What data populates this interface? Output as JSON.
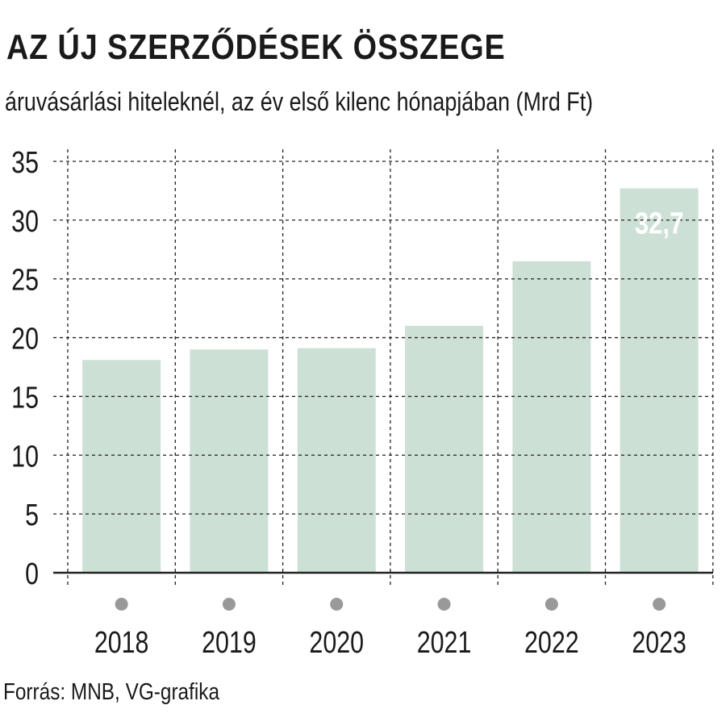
{
  "title": "AZ ÚJ SZERZŐDÉSEK ÖSSZEGE",
  "subtitle": "áruvásárlási hiteleknél, az év első kilenc hónapjában (Mrd Ft)",
  "source": "Forrás: MNB, VG-grafika",
  "colors": {
    "bar": "#cde0d5",
    "grid": "#222222",
    "dot": "#999999",
    "label": "#ffffff",
    "text": "#1a1a1a"
  },
  "chart_data": {
    "type": "bar",
    "title": "AZ ÚJ SZERZŐDÉSEK ÖSSZEGE",
    "ylabel": "Mrd Ft",
    "xlabel": "",
    "categories": [
      "2018",
      "2019",
      "2020",
      "2021",
      "2022",
      "2023"
    ],
    "values": [
      18.1,
      19.0,
      19.1,
      21.0,
      26.5,
      32.7
    ],
    "ylim": [
      0,
      35
    ],
    "yticks": [
      "0",
      "5",
      "10",
      "15",
      "20",
      "25",
      "30",
      "35"
    ],
    "grid": true,
    "data_labels": [
      {
        "category": "2023",
        "text": "32,7"
      }
    ]
  }
}
